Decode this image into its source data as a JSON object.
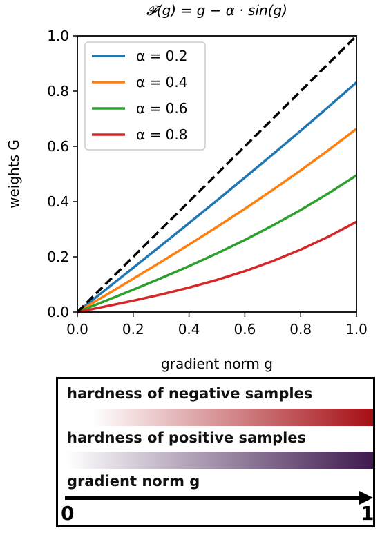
{
  "chart_data": {
    "type": "line",
    "title": "𝓕(g) = g − α · sin(g)",
    "xlabel": "gradient norm g",
    "ylabel": "weights G",
    "xlim": [
      0.0,
      1.0
    ],
    "ylim": [
      0.0,
      1.0
    ],
    "xticks": [
      "0.0",
      "0.2",
      "0.4",
      "0.6",
      "0.8",
      "1.0"
    ],
    "yticks": [
      "0.0",
      "0.2",
      "0.4",
      "0.6",
      "0.8",
      "1.0"
    ],
    "grid": false,
    "legend_position": "top-left",
    "x": [
      0.0,
      0.1,
      0.2,
      0.3,
      0.4,
      0.5,
      0.6,
      0.7,
      0.8,
      0.9,
      1.0
    ],
    "reference": {
      "values": [
        0.0,
        0.1,
        0.2,
        0.3,
        0.4,
        0.5,
        0.6,
        0.7,
        0.8,
        0.9,
        1.0
      ],
      "style": "dashed",
      "color": "#000000"
    },
    "series": [
      {
        "name": "α = 0.2",
        "color": "#1f77b4",
        "values": [
          0.0,
          0.08,
          0.1603,
          0.2409,
          0.3221,
          0.4041,
          0.4871,
          0.5712,
          0.6565,
          0.7433,
          0.8317
        ]
      },
      {
        "name": "α = 0.4",
        "color": "#ff7f0e",
        "values": [
          0.0,
          0.0601,
          0.1205,
          0.1818,
          0.2442,
          0.3082,
          0.3741,
          0.4423,
          0.5131,
          0.5867,
          0.6634
        ]
      },
      {
        "name": "α = 0.6",
        "color": "#2ca02c",
        "values": [
          0.0,
          0.0401,
          0.0808,
          0.1227,
          0.1664,
          0.2123,
          0.2612,
          0.3135,
          0.3696,
          0.43,
          0.4951
        ]
      },
      {
        "name": "α = 0.8",
        "color": "#d62728",
        "values": [
          0.0,
          0.0201,
          0.0411,
          0.0636,
          0.0885,
          0.1165,
          0.1483,
          0.1846,
          0.2261,
          0.2733,
          0.3268
        ]
      }
    ]
  },
  "panel": {
    "negative_label": "hardness of negative samples",
    "positive_label": "hardness of positive samples",
    "gradient_label": "gradient norm g",
    "start_label": "0",
    "end_label": "1",
    "negative_color": "#a50f15",
    "positive_color": "#3f1a4f"
  }
}
